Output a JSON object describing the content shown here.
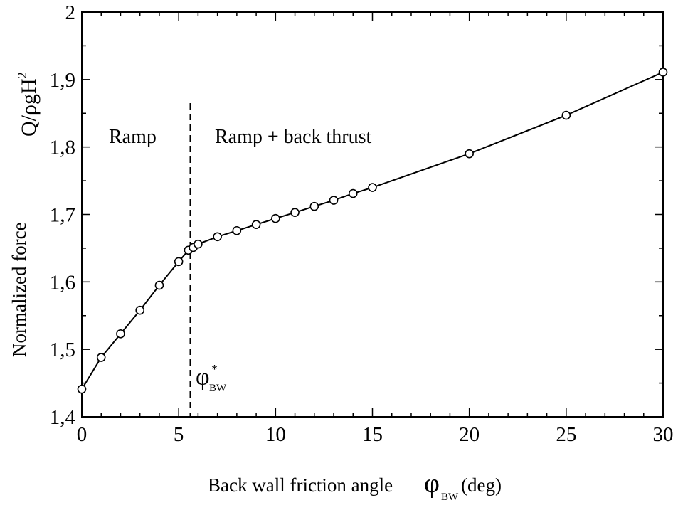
{
  "chart_data": {
    "type": "line",
    "xlabel_main": "Back wall friction angle ",
    "xlabel_symbol": "φ",
    "xlabel_sub": "BW",
    "xlabel_unit": "(deg)",
    "ylabel_top": "Q/ρgH",
    "ylabel_top_sup": "2",
    "ylabel_bottom": "Normalized force",
    "xlim": [
      0,
      30
    ],
    "ylim": [
      1.4,
      2.0
    ],
    "xticks": [
      0,
      5,
      10,
      15,
      20,
      25,
      30
    ],
    "xtick_labels": [
      "0",
      "5",
      "10",
      "15",
      "20",
      "25",
      "30"
    ],
    "yticks": [
      1.4,
      1.5,
      1.6,
      1.7,
      1.8,
      1.9,
      2.0
    ],
    "ytick_labels": [
      "1,4",
      "1,5",
      "1,6",
      "1,7",
      "1,8",
      "1,9",
      "2"
    ],
    "series": [
      {
        "marker": "open-circle",
        "x": [
          0,
          1,
          2,
          3,
          4,
          5,
          5.5,
          5.75,
          6,
          7,
          8,
          9,
          10,
          11,
          12,
          13,
          14,
          15,
          20,
          25,
          30
        ],
        "y": [
          1.441,
          1.488,
          1.523,
          1.558,
          1.595,
          1.63,
          1.647,
          1.651,
          1.656,
          1.667,
          1.676,
          1.685,
          1.694,
          1.703,
          1.712,
          1.721,
          1.731,
          1.74,
          1.79,
          1.847,
          1.911
        ]
      }
    ],
    "threshold": {
      "x": 5.6,
      "symbol": "φ",
      "sup": "*",
      "sub": "BW",
      "style": "dashed"
    },
    "regions": {
      "left": "Ramp",
      "right": "Ramp + back thrust"
    },
    "grid": false
  }
}
